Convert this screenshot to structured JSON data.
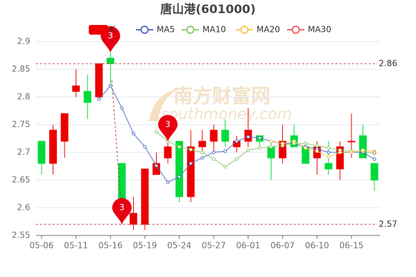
{
  "chart_data": {
    "type": "candlestick",
    "title": "唐山港(601000)",
    "watermark": [
      "南方财富网",
      "southmoney.com"
    ],
    "categories": [
      "05-06",
      null,
      null,
      "05-11",
      null,
      null,
      "05-16",
      null,
      null,
      "05-19",
      null,
      null,
      "05-24",
      null,
      null,
      "05-27",
      null,
      null,
      "06-01",
      null,
      null,
      "06-07",
      null,
      null,
      "06-10",
      null,
      null,
      "06-15",
      null,
      null
    ],
    "candles": {
      "name": "K",
      "up_color": "#ec0000",
      "down_color": "#00da3c",
      "open": [
        2.72,
        2.68,
        2.72,
        2.81,
        2.81,
        2.8,
        2.87,
        2.68,
        2.57,
        2.57,
        2.66,
        2.69,
        2.72,
        2.62,
        2.71,
        2.72,
        2.74,
        2.71,
        2.72,
        2.73,
        2.71,
        2.69,
        2.73,
        2.71,
        2.69,
        2.68,
        2.67,
        2.72,
        2.73,
        2.68
      ],
      "close": [
        2.68,
        2.74,
        2.77,
        2.82,
        2.79,
        2.86,
        2.86,
        2.58,
        2.59,
        2.67,
        2.68,
        2.71,
        2.62,
        2.71,
        2.72,
        2.74,
        2.72,
        2.72,
        2.74,
        2.72,
        2.69,
        2.72,
        2.71,
        2.68,
        2.71,
        2.67,
        2.71,
        2.72,
        2.69,
        2.65
      ],
      "high": [
        2.72,
        2.75,
        2.77,
        2.85,
        2.84,
        2.86,
        2.88,
        2.68,
        2.62,
        2.67,
        2.7,
        2.72,
        2.72,
        2.74,
        2.74,
        2.75,
        2.76,
        2.73,
        2.78,
        2.73,
        2.72,
        2.75,
        2.75,
        2.72,
        2.72,
        2.72,
        2.72,
        2.77,
        2.75,
        2.68
      ],
      "low": [
        2.66,
        2.66,
        2.69,
        2.8,
        2.76,
        2.8,
        2.82,
        2.57,
        2.56,
        2.56,
        2.66,
        2.68,
        2.61,
        2.61,
        2.7,
        2.7,
        2.71,
        2.7,
        2.71,
        2.71,
        2.65,
        2.68,
        2.71,
        2.68,
        2.66,
        2.66,
        2.65,
        2.69,
        2.69,
        2.63
      ]
    },
    "series": [
      {
        "name": "MA5",
        "color": "#5470c6",
        "values": [
          null,
          null,
          null,
          null,
          null,
          2.796,
          2.82,
          2.78,
          2.734,
          2.71,
          2.676,
          2.646,
          2.656,
          2.68,
          2.69,
          2.7,
          2.702,
          2.72,
          2.728,
          2.726,
          2.72,
          2.716,
          2.716,
          2.71,
          2.706,
          2.7,
          2.7,
          2.7,
          2.7,
          2.688
        ]
      },
      {
        "name": "MA10",
        "color": "#91cc75",
        "values": [
          null,
          null,
          null,
          null,
          null,
          null,
          null,
          null,
          null,
          null,
          2.737,
          2.72,
          2.71,
          2.705,
          2.7,
          2.688,
          2.674,
          2.688,
          2.704,
          2.708,
          2.71,
          2.712,
          2.716,
          2.716,
          2.712,
          2.708,
          2.704,
          2.702,
          2.702,
          2.698
        ]
      },
      {
        "name": "MA20",
        "color": "#fac858",
        "values": [
          null,
          null,
          null,
          null,
          null,
          null,
          null,
          null,
          null,
          null,
          null,
          null,
          null,
          null,
          null,
          null,
          null,
          null,
          null,
          null,
          2.72,
          2.716,
          2.72,
          2.708,
          2.702,
          2.692,
          2.7,
          2.7,
          2.704,
          2.702
        ]
      },
      {
        "name": "MA30",
        "color": "#ee6666",
        "values": [
          null,
          null,
          null,
          null,
          null,
          null,
          null,
          null,
          null,
          null,
          null,
          null,
          null,
          null,
          null,
          null,
          null,
          null,
          null,
          null,
          null,
          null,
          null,
          null,
          null,
          null,
          null,
          null,
          null,
          2.7
        ]
      }
    ],
    "ylim": [
      2.55,
      2.9
    ],
    "yticks": [
      2.55,
      2.6,
      2.65,
      2.7,
      2.75,
      2.8,
      2.85,
      2.9
    ],
    "grid": true,
    "mark_lines": [
      {
        "value": 2.86,
        "label": "2.86"
      },
      {
        "value": 2.57,
        "label": "2.57"
      }
    ],
    "mark_points": [
      {
        "index": 6,
        "value": 2.88,
        "label": "3"
      },
      {
        "index": 11,
        "value": 2.72,
        "label": "3"
      },
      {
        "index": 7,
        "value": 2.57,
        "label": "3"
      }
    ]
  }
}
